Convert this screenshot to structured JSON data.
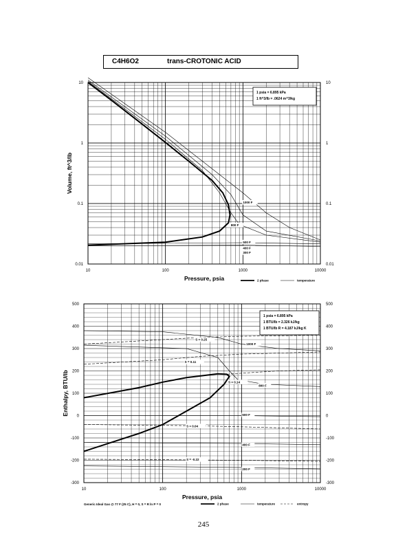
{
  "header": {
    "formula": "C4H6O2",
    "name": "trans-CROTONIC ACID"
  },
  "page_number": "245",
  "footnote": "Generic Ideal Gas @ 77 F (25 C), H = 0, S = R ln P = 0",
  "chart_data": [
    {
      "type": "line",
      "xscale": "log",
      "yscale": "log",
      "xlabel": "Pressure,  psia",
      "ylabel": "Volume, ft^3/lb",
      "xlim": [
        10,
        10000
      ],
      "ylim": [
        0.01,
        10
      ],
      "x_ticks": [
        "10",
        "100",
        "1000",
        "10000"
      ],
      "y_ticks": [
        "0.01",
        "0.1",
        "1",
        "10"
      ],
      "notes": [
        "1 psia = 6.895 kPa",
        "1 ft^3/lb = .0624 m^3/kg"
      ],
      "legend": [
        "2 phase",
        "temperature"
      ],
      "annotations": [
        "1000 F",
        "800 F",
        "500 F",
        "400 F",
        "300 F"
      ],
      "series": [
        {
          "name": "2 phase",
          "style": "bold",
          "points": [
            [
              10,
              10
            ],
            [
              20,
              5.1
            ],
            [
              50,
              2.05
            ],
            [
              100,
              1.02
            ],
            [
              200,
              0.5
            ],
            [
              400,
              0.24
            ],
            [
              550,
              0.15
            ],
            [
              650,
              0.095
            ],
            [
              680,
              0.065
            ],
            [
              650,
              0.048
            ],
            [
              500,
              0.035
            ],
            [
              300,
              0.028
            ],
            [
              100,
              0.023
            ],
            [
              10,
              0.0205
            ]
          ]
        },
        {
          "name": "1000 F",
          "style": "thin",
          "points": [
            [
              10,
              12
            ],
            [
              100,
              1.5
            ],
            [
              500,
              0.3
            ],
            [
              1000,
              0.15
            ],
            [
              2000,
              0.07
            ],
            [
              4000,
              0.04
            ],
            [
              10000,
              0.025
            ]
          ]
        },
        {
          "name": "800 F",
          "style": "thin",
          "points": [
            [
              10,
              11
            ],
            [
              100,
              1.3
            ],
            [
              400,
              0.3
            ],
            [
              700,
              0.14
            ],
            [
              1000,
              0.065
            ],
            [
              2000,
              0.035
            ],
            [
              10000,
              0.024
            ]
          ]
        },
        {
          "name": "500 F",
          "style": "thin",
          "points": [
            [
              10,
              10.5
            ],
            [
              100,
              1.15
            ],
            [
              300,
              0.35
            ],
            [
              500,
              0.15
            ],
            [
              700,
              0.07
            ],
            [
              900,
              0.045
            ],
            [
              2000,
              0.03
            ],
            [
              10000,
              0.023
            ]
          ]
        },
        {
          "name": "400 F",
          "style": "thin",
          "points": [
            [
              10,
              0.0215
            ],
            [
              1000,
              0.0225
            ],
            [
              10000,
              0.0215
            ]
          ]
        },
        {
          "name": "300 F",
          "style": "thin",
          "points": [
            [
              10,
              0.02
            ],
            [
              1000,
              0.0205
            ],
            [
              10000,
              0.0195
            ]
          ]
        }
      ]
    },
    {
      "type": "line",
      "xscale": "log",
      "xlabel": "Pressure,  psia",
      "ylabel": "Enthalpy, BTU/lb",
      "xlim": [
        10,
        10000
      ],
      "ylim": [
        -300,
        500
      ],
      "x_ticks": [
        "10",
        "100",
        "1000",
        "10000"
      ],
      "y_ticks": [
        "-300",
        "-200",
        "-100",
        "0",
        "100",
        "200",
        "300",
        "400",
        "500"
      ],
      "notes": [
        "1 psia = 6.895 kPa",
        "1 BTU/lb = 2.326 kJ/kg",
        "1 BTU/lb R = 4.187 kJ/kg K"
      ],
      "legend": [
        "2 phase",
        "temperature",
        "entropy"
      ],
      "annotations": [
        "S = 0.25",
        "S = 0.11",
        "S = 0.14",
        "S = 0.04",
        "S = -0.22",
        "1000 F",
        "800 F",
        "600 F",
        "400 F",
        "200 F"
      ],
      "series": [
        {
          "name": "2 phase",
          "style": "bold",
          "points": [
            [
              10,
              -160
            ],
            [
              50,
              -80
            ],
            [
              100,
              -40
            ],
            [
              200,
              20
            ],
            [
              400,
              80
            ],
            [
              600,
              140
            ],
            [
              700,
              175
            ],
            [
              650,
              185
            ],
            [
              500,
              187
            ],
            [
              200,
              170
            ],
            [
              100,
              150
            ],
            [
              50,
              125
            ],
            [
              10,
              80
            ]
          ]
        },
        {
          "name": "1000 F",
          "style": "thin",
          "points": [
            [
              10,
              380
            ],
            [
              100,
              375
            ],
            [
              500,
              350
            ],
            [
              1000,
              320
            ],
            [
              3000,
              300
            ],
            [
              10000,
              290
            ]
          ]
        },
        {
          "name": "800 F",
          "style": "thin",
          "points": [
            [
              10,
              315
            ],
            [
              200,
              300
            ],
            [
              500,
              260
            ],
            [
              700,
              200
            ],
            [
              900,
              160
            ],
            [
              2000,
              140
            ],
            [
              10000,
              130
            ]
          ]
        },
        {
          "name": "600 F",
          "style": "thin",
          "points": [
            [
              10,
              0
            ],
            [
              1000,
              0
            ],
            [
              10000,
              -5
            ]
          ]
        },
        {
          "name": "400 F",
          "style": "thin",
          "points": [
            [
              10,
              -120
            ],
            [
              1000,
              -125
            ],
            [
              10000,
              -130
            ]
          ]
        },
        {
          "name": "200 F",
          "style": "thin",
          "points": [
            [
              10,
              -225
            ],
            [
              1000,
              -232
            ],
            [
              10000,
              -238
            ]
          ]
        },
        {
          "name": "S = 0.25",
          "style": "dashed",
          "points": [
            [
              10,
              320
            ],
            [
              100,
              340
            ],
            [
              300,
              350
            ],
            [
              1000,
              355
            ],
            [
              10000,
              360
            ]
          ]
        },
        {
          "name": "S = 0.11",
          "style": "dashed",
          "points": [
            [
              10,
              230
            ],
            [
              100,
              250
            ],
            [
              300,
              265
            ],
            [
              1000,
              275
            ],
            [
              10000,
              285
            ]
          ]
        },
        {
          "name": "S = 0.14",
          "style": "dashed",
          "points": [
            [
              650,
              185
            ],
            [
              1000,
              190
            ],
            [
              3000,
              200
            ],
            [
              10000,
              205
            ]
          ]
        },
        {
          "name": "S = 0.04",
          "style": "dashed",
          "points": [
            [
              10,
              -40
            ],
            [
              200,
              -45
            ],
            [
              1000,
              -50
            ],
            [
              10000,
              -60
            ]
          ]
        },
        {
          "name": "S = -0.22",
          "style": "dashed",
          "points": [
            [
              10,
              -195
            ],
            [
              200,
              -198
            ],
            [
              1000,
              -200
            ],
            [
              10000,
              -205
            ]
          ]
        }
      ]
    }
  ]
}
